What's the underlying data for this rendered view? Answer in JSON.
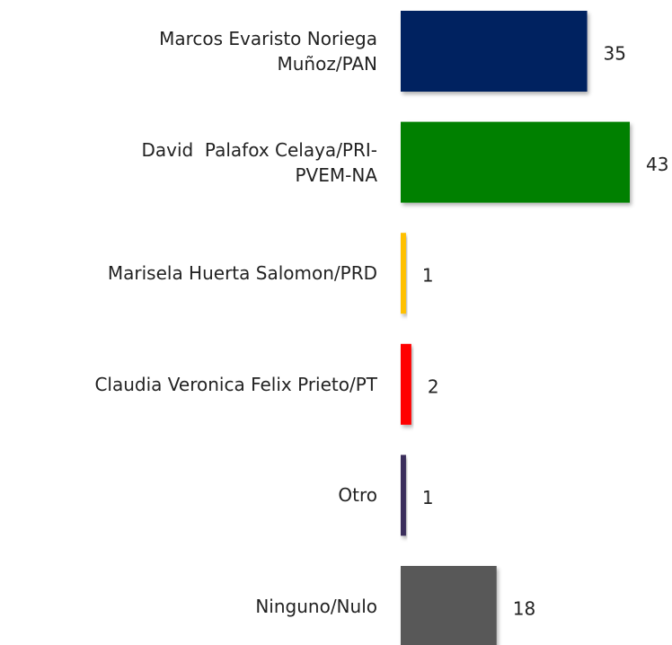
{
  "chart_data": {
    "type": "bar",
    "orientation": "horizontal",
    "categories": [
      "Marcos Evaristo Noriega\nMuñoz/PAN",
      "David  Palafox Celaya/PRI-\nPVEM-NA",
      "Marisela Huerta Salomon/PRD",
      "Claudia Veronica Felix Prieto/PT",
      "Otro",
      "Ninguno/Nulo"
    ],
    "values": [
      35,
      43,
      1,
      2,
      1,
      18
    ],
    "colors": [
      "#002060",
      "#008000",
      "#ffc000",
      "#ff0000",
      "#3b2d5c",
      "#595959"
    ]
  }
}
